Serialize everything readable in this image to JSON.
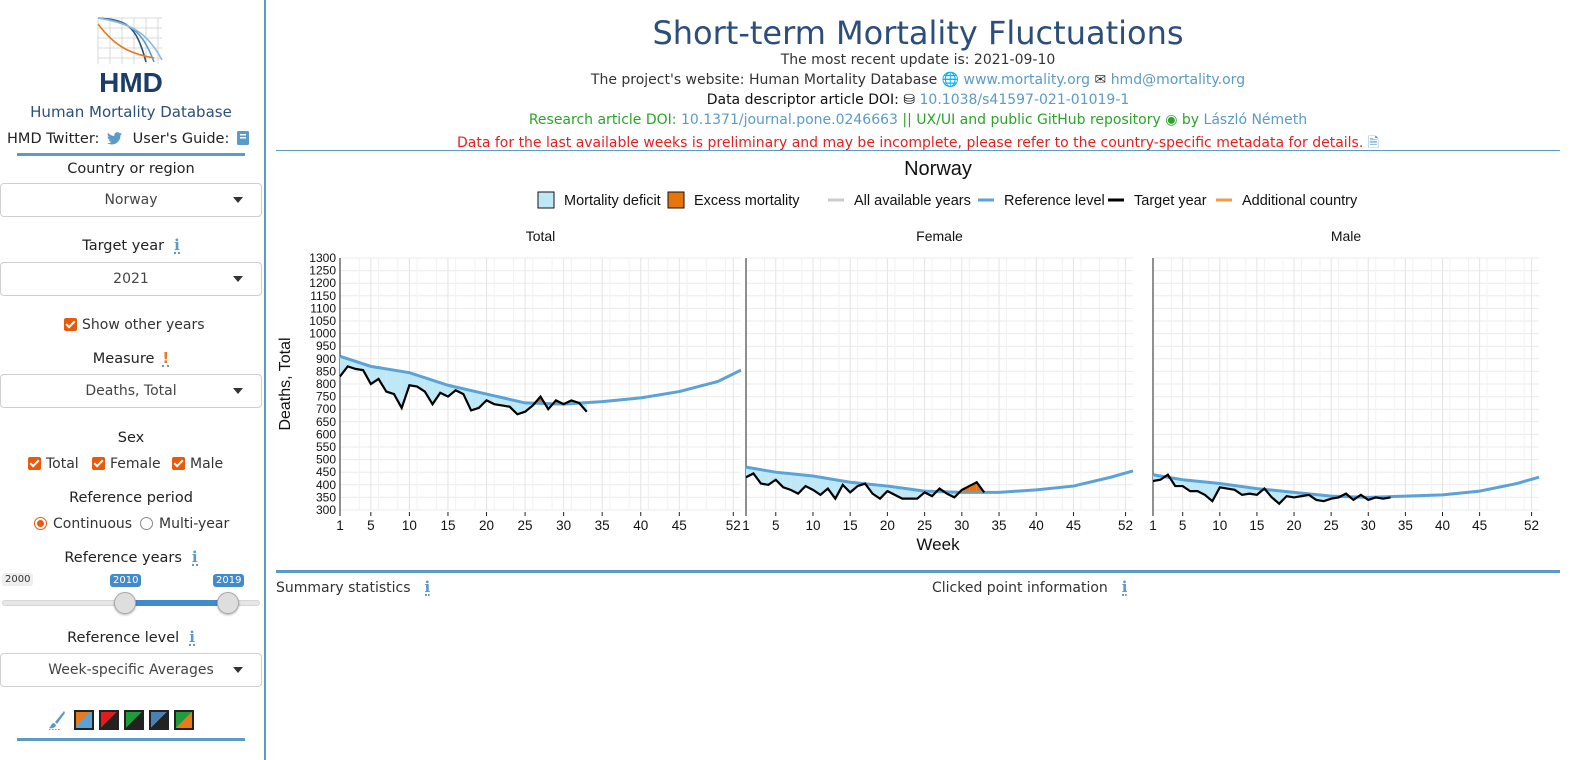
{
  "sidebar": {
    "brand": "Human Mortality Database",
    "twitter_label": "HMD Twitter:",
    "guide_label": "User's Guide:",
    "country_label": "Country or region",
    "country_value": "Norway",
    "target_year_label": "Target year",
    "target_year_value": "2021",
    "show_other_years": "Show other years",
    "measure_label": "Measure",
    "measure_value": "Deaths, Total",
    "sex_label": "Sex",
    "sex_total": "Total",
    "sex_female": "Female",
    "sex_male": "Male",
    "ref_period_label": "Reference period",
    "ref_continuous": "Continuous",
    "ref_multiyear": "Multi-year",
    "ref_years_label": "Reference years",
    "slider_min": "2000",
    "slider_from": "2010",
    "slider_to": "2019",
    "ref_level_label": "Reference level",
    "ref_level_value": "Week-specific Averages",
    "palette_colors": [
      "#5ba3d6",
      "#e41a1c",
      "#1f9d3a",
      "#4682b4",
      "#e87a1a"
    ]
  },
  "header": {
    "title": "Short-term Mortality Fluctuations",
    "update": "The most recent update is: 2021-09-10",
    "website_prefix": "The project's website: Human Mortality Database",
    "website_url": "www.mortality.org",
    "email": "hmd@mortality.org",
    "descriptor_prefix": "Data descriptor article DOI:",
    "descriptor_doi": "10.1038/s41597-021-01019-1",
    "research_prefix": "Research article DOI:",
    "research_doi": "10.1371/journal.pone.0246663",
    "research_mid": "|| UX/UI and public GitHub repository",
    "research_by": "by",
    "author": "László Németh",
    "warning": "Data for the last available weeks is preliminary and may be incomplete, please refer to the country-specific metadata for details."
  },
  "chart_data": {
    "type": "line",
    "title": "Norway",
    "xlabel": "Week",
    "ylabel": "Deaths, Total",
    "ylim": [
      300,
      1300
    ],
    "xlim": [
      1,
      53
    ],
    "x_ticks": [
      1,
      5,
      10,
      15,
      20,
      25,
      30,
      35,
      40,
      45,
      52
    ],
    "y_ticks": [
      300,
      350,
      400,
      450,
      500,
      550,
      600,
      650,
      700,
      750,
      800,
      850,
      900,
      950,
      1000,
      1050,
      1100,
      1150,
      1200,
      1250,
      1300
    ],
    "legend": {
      "placement": "top",
      "items": [
        {
          "label": "Mortality deficit",
          "kind": "box",
          "color": "#bfe8f7"
        },
        {
          "label": "Excess mortality",
          "kind": "box",
          "color": "#e8740c"
        },
        {
          "label": "All available years",
          "kind": "line",
          "color": "#cccccc"
        },
        {
          "label": "Reference level",
          "kind": "line",
          "color": "#5ba3d6"
        },
        {
          "label": "Target year",
          "kind": "line",
          "color": "#000000"
        },
        {
          "label": "Additional country",
          "kind": "line",
          "color": "#f59a45"
        }
      ]
    },
    "panels": [
      {
        "name": "Total",
        "reference_x": [
          1,
          5,
          10,
          15,
          20,
          25,
          30,
          35,
          40,
          45,
          50,
          53
        ],
        "reference": [
          910,
          870,
          845,
          795,
          760,
          725,
          720,
          730,
          745,
          770,
          810,
          855
        ],
        "target_x": [
          1,
          2,
          3,
          4,
          5,
          6,
          7,
          8,
          9,
          10,
          11,
          12,
          13,
          14,
          15,
          16,
          17,
          18,
          19,
          20,
          21,
          22,
          23,
          24,
          25,
          26,
          27,
          28,
          29,
          30,
          31,
          32,
          33
        ],
        "target": [
          830,
          870,
          860,
          855,
          800,
          820,
          770,
          760,
          705,
          795,
          790,
          770,
          720,
          765,
          750,
          775,
          760,
          695,
          705,
          735,
          720,
          715,
          710,
          680,
          690,
          715,
          750,
          700,
          735,
          720,
          735,
          725,
          690
        ]
      },
      {
        "name": "Female",
        "reference_x": [
          1,
          5,
          10,
          15,
          20,
          25,
          30,
          35,
          40,
          45,
          50,
          53
        ],
        "reference": [
          470,
          450,
          435,
          410,
          395,
          375,
          370,
          370,
          380,
          395,
          430,
          455
        ],
        "target_x": [
          1,
          2,
          3,
          4,
          5,
          6,
          7,
          8,
          9,
          10,
          11,
          12,
          13,
          14,
          15,
          16,
          17,
          18,
          19,
          20,
          21,
          22,
          23,
          24,
          25,
          26,
          27,
          28,
          29,
          30,
          31,
          32,
          33
        ],
        "target": [
          430,
          445,
          405,
          400,
          420,
          390,
          380,
          365,
          395,
          380,
          360,
          385,
          345,
          400,
          370,
          395,
          405,
          365,
          345,
          375,
          360,
          345,
          345,
          345,
          370,
          355,
          385,
          365,
          350,
          380,
          395,
          410,
          370
        ]
      },
      {
        "name": "Male",
        "reference_x": [
          1,
          5,
          10,
          15,
          20,
          25,
          30,
          35,
          40,
          45,
          50,
          53
        ],
        "reference": [
          440,
          420,
          405,
          385,
          370,
          355,
          350,
          355,
          360,
          375,
          405,
          430
        ],
        "target_x": [
          1,
          2,
          3,
          4,
          5,
          6,
          7,
          8,
          9,
          10,
          11,
          12,
          13,
          14,
          15,
          16,
          17,
          18,
          19,
          20,
          21,
          22,
          23,
          24,
          25,
          26,
          27,
          28,
          29,
          30,
          31,
          32,
          33
        ],
        "target": [
          415,
          420,
          440,
          395,
          395,
          375,
          375,
          360,
          335,
          390,
          385,
          380,
          360,
          365,
          360,
          385,
          350,
          325,
          355,
          350,
          355,
          360,
          340,
          335,
          345,
          350,
          365,
          340,
          360,
          340,
          350,
          345,
          350
        ]
      }
    ]
  },
  "footer": {
    "summary": "Summary statistics",
    "clicked": "Clicked point information"
  }
}
